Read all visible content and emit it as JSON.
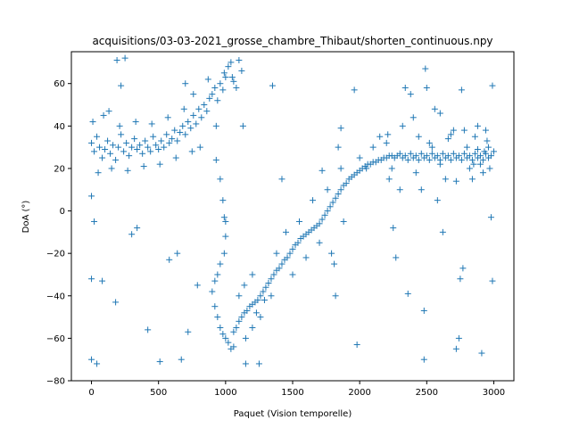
{
  "chart_data": {
    "type": "scatter",
    "title": "acquisitions/03-03-2021_grosse_chambre_Thibaut/shorten_continuous.npy",
    "xlabel": "Paquet (Vision temporelle)",
    "ylabel": "DoA (°)",
    "xlim": [
      -150,
      3150
    ],
    "ylim": [
      -80,
      75
    ],
    "xticks": [
      0,
      500,
      1000,
      1500,
      2000,
      2500,
      3000
    ],
    "yticks": [
      -80,
      -60,
      -40,
      -20,
      0,
      20,
      40,
      60
    ],
    "marker": "+",
    "color": "#1f77b4",
    "grid": false,
    "series": [
      {
        "name": "",
        "points": [
          [
            0,
            32
          ],
          [
            20,
            28
          ],
          [
            40,
            35
          ],
          [
            60,
            30
          ],
          [
            80,
            25
          ],
          [
            100,
            29
          ],
          [
            120,
            33
          ],
          [
            140,
            27
          ],
          [
            160,
            31
          ],
          [
            180,
            24
          ],
          [
            200,
            30
          ],
          [
            220,
            36
          ],
          [
            240,
            28
          ],
          [
            260,
            32
          ],
          [
            280,
            26
          ],
          [
            300,
            30
          ],
          [
            320,
            34
          ],
          [
            340,
            29
          ],
          [
            360,
            31
          ],
          [
            380,
            27
          ],
          [
            400,
            33
          ],
          [
            420,
            30
          ],
          [
            440,
            28
          ],
          [
            460,
            35
          ],
          [
            480,
            31
          ],
          [
            500,
            29
          ],
          [
            520,
            33
          ],
          [
            540,
            30
          ],
          [
            560,
            36
          ],
          [
            580,
            32
          ],
          [
            600,
            34
          ],
          [
            620,
            38
          ],
          [
            640,
            33
          ],
          [
            660,
            37
          ],
          [
            680,
            40
          ],
          [
            700,
            36
          ],
          [
            720,
            42
          ],
          [
            740,
            39
          ],
          [
            760,
            45
          ],
          [
            780,
            41
          ],
          [
            800,
            48
          ],
          [
            820,
            44
          ],
          [
            840,
            50
          ],
          [
            860,
            47
          ],
          [
            880,
            53
          ],
          [
            900,
            55
          ],
          [
            920,
            58
          ],
          [
            940,
            52
          ],
          [
            960,
            60
          ],
          [
            980,
            57
          ],
          [
            10,
            42
          ],
          [
            50,
            18
          ],
          [
            90,
            45
          ],
          [
            150,
            20
          ],
          [
            210,
            40
          ],
          [
            270,
            19
          ],
          [
            330,
            42
          ],
          [
            390,
            21
          ],
          [
            450,
            41
          ],
          [
            510,
            22
          ],
          [
            570,
            44
          ],
          [
            630,
            25
          ],
          [
            690,
            48
          ],
          [
            750,
            28
          ],
          [
            810,
            30
          ],
          [
            870,
            62
          ],
          [
            930,
            40
          ],
          [
            990,
            65
          ],
          [
            700,
            60
          ],
          [
            760,
            55
          ],
          [
            0,
            7
          ],
          [
            20,
            -5
          ],
          [
            0,
            -32
          ],
          [
            80,
            -33
          ],
          [
            180,
            -43
          ],
          [
            0,
            -70
          ],
          [
            40,
            -72
          ],
          [
            130,
            47
          ],
          [
            190,
            71
          ],
          [
            250,
            72
          ],
          [
            220,
            59
          ],
          [
            300,
            -11
          ],
          [
            340,
            -8
          ],
          [
            420,
            -56
          ],
          [
            510,
            -71
          ],
          [
            580,
            -23
          ],
          [
            640,
            -20
          ],
          [
            670,
            -70
          ],
          [
            720,
            -57
          ],
          [
            790,
            -35
          ],
          [
            1000,
            63
          ],
          [
            1020,
            68
          ],
          [
            1040,
            70
          ],
          [
            1060,
            61
          ],
          [
            1080,
            58
          ],
          [
            1100,
            71
          ],
          [
            1120,
            66
          ],
          [
            1130,
            40
          ],
          [
            1350,
            59
          ],
          [
            1050,
            63
          ],
          [
            930,
            24
          ],
          [
            960,
            15
          ],
          [
            980,
            5
          ],
          [
            990,
            -3
          ],
          [
            1000,
            -5
          ],
          [
            1000,
            -12
          ],
          [
            990,
            -20
          ],
          [
            960,
            -25
          ],
          [
            940,
            -30
          ],
          [
            920,
            -33
          ],
          [
            900,
            -38
          ],
          [
            920,
            -45
          ],
          [
            940,
            -50
          ],
          [
            960,
            -55
          ],
          [
            980,
            -58
          ],
          [
            1000,
            -60
          ],
          [
            1020,
            -62
          ],
          [
            1040,
            -65
          ],
          [
            1060,
            -57
          ],
          [
            1080,
            -55
          ],
          [
            1100,
            -52
          ],
          [
            1120,
            -50
          ],
          [
            1140,
            -48
          ],
          [
            1160,
            -47
          ],
          [
            1180,
            -45
          ],
          [
            1200,
            -44
          ],
          [
            1220,
            -43
          ],
          [
            1240,
            -42
          ],
          [
            1260,
            -40
          ],
          [
            1280,
            -38
          ],
          [
            1300,
            -36
          ],
          [
            1320,
            -34
          ],
          [
            1340,
            -32
          ],
          [
            1360,
            -30
          ],
          [
            1380,
            -28
          ],
          [
            1400,
            -27
          ],
          [
            1420,
            -25
          ],
          [
            1440,
            -23
          ],
          [
            1460,
            -22
          ],
          [
            1480,
            -20
          ],
          [
            1500,
            -18
          ],
          [
            1520,
            -16
          ],
          [
            1540,
            -15
          ],
          [
            1560,
            -13
          ],
          [
            1580,
            -12
          ],
          [
            1600,
            -11
          ],
          [
            1620,
            -10
          ],
          [
            1640,
            -9
          ],
          [
            1660,
            -8
          ],
          [
            1680,
            -7
          ],
          [
            1700,
            -6
          ],
          [
            1720,
            -4
          ],
          [
            1740,
            -2
          ],
          [
            1760,
            0
          ],
          [
            1780,
            2
          ],
          [
            1800,
            4
          ],
          [
            1820,
            6
          ],
          [
            1840,
            8
          ],
          [
            1860,
            10
          ],
          [
            1880,
            12
          ],
          [
            1900,
            13
          ],
          [
            1920,
            15
          ],
          [
            1940,
            16
          ],
          [
            1960,
            17
          ],
          [
            1980,
            18
          ],
          [
            2000,
            19
          ],
          [
            2020,
            20
          ],
          [
            2040,
            21
          ],
          [
            2060,
            22
          ],
          [
            2080,
            22
          ],
          [
            2100,
            23
          ],
          [
            2120,
            23
          ],
          [
            2140,
            24
          ],
          [
            2160,
            24
          ],
          [
            2180,
            25
          ],
          [
            2200,
            25
          ],
          [
            2220,
            26
          ],
          [
            2240,
            26
          ],
          [
            2260,
            25
          ],
          [
            2280,
            26
          ],
          [
            2300,
            27
          ],
          [
            2320,
            25
          ],
          [
            2340,
            26
          ],
          [
            2360,
            24
          ],
          [
            2380,
            27
          ],
          [
            2400,
            25
          ],
          [
            2420,
            26
          ],
          [
            2440,
            24
          ],
          [
            2460,
            27
          ],
          [
            2480,
            25
          ],
          [
            2500,
            26
          ],
          [
            2520,
            24
          ],
          [
            2540,
            27
          ],
          [
            2560,
            25
          ],
          [
            2580,
            26
          ],
          [
            2600,
            24
          ],
          [
            2620,
            27
          ],
          [
            2640,
            25
          ],
          [
            2660,
            26
          ],
          [
            2680,
            24
          ],
          [
            2700,
            27
          ],
          [
            2720,
            25
          ],
          [
            2740,
            26
          ],
          [
            2760,
            24
          ],
          [
            2780,
            27
          ],
          [
            2800,
            25
          ],
          [
            2820,
            26
          ],
          [
            2840,
            24
          ],
          [
            2860,
            27
          ],
          [
            2880,
            25
          ],
          [
            2900,
            26
          ],
          [
            2920,
            24
          ],
          [
            2940,
            27
          ],
          [
            2960,
            25
          ],
          [
            2980,
            26
          ],
          [
            3000,
            28
          ],
          [
            1060,
            -64
          ],
          [
            1100,
            -40
          ],
          [
            1150,
            -60
          ],
          [
            1200,
            -55
          ],
          [
            1230,
            -48
          ],
          [
            1260,
            -50
          ],
          [
            1150,
            -72
          ],
          [
            1250,
            -72
          ],
          [
            1140,
            -35
          ],
          [
            1200,
            -30
          ],
          [
            1290,
            -42
          ],
          [
            1340,
            -40
          ],
          [
            1380,
            -20
          ],
          [
            1420,
            15
          ],
          [
            1450,
            -10
          ],
          [
            1500,
            -30
          ],
          [
            1550,
            -5
          ],
          [
            1600,
            -22
          ],
          [
            1650,
            5
          ],
          [
            1700,
            -15
          ],
          [
            1720,
            19
          ],
          [
            1760,
            10
          ],
          [
            1790,
            -20
          ],
          [
            1810,
            -25
          ],
          [
            1820,
            -40
          ],
          [
            1840,
            30
          ],
          [
            1860,
            39
          ],
          [
            1860,
            20
          ],
          [
            1880,
            -5
          ],
          [
            1960,
            57
          ],
          [
            1980,
            -63
          ],
          [
            2000,
            25
          ],
          [
            2050,
            20
          ],
          [
            2100,
            30
          ],
          [
            2150,
            35
          ],
          [
            2200,
            32
          ],
          [
            2210,
            36
          ],
          [
            2220,
            15
          ],
          [
            2240,
            20
          ],
          [
            2250,
            -8
          ],
          [
            2270,
            -22
          ],
          [
            2300,
            10
          ],
          [
            2320,
            40
          ],
          [
            2340,
            58
          ],
          [
            2360,
            -39
          ],
          [
            2380,
            55
          ],
          [
            2400,
            44
          ],
          [
            2420,
            18
          ],
          [
            2440,
            35
          ],
          [
            2460,
            10
          ],
          [
            2480,
            -47
          ],
          [
            2490,
            67
          ],
          [
            2500,
            58
          ],
          [
            2520,
            32
          ],
          [
            2540,
            30
          ],
          [
            2560,
            48
          ],
          [
            2580,
            5
          ],
          [
            2600,
            22
          ],
          [
            2620,
            -10
          ],
          [
            2640,
            15
          ],
          [
            2660,
            34
          ],
          [
            2680,
            36
          ],
          [
            2700,
            38
          ],
          [
            2720,
            14
          ],
          [
            2740,
            -60
          ],
          [
            2750,
            -32
          ],
          [
            2760,
            57
          ],
          [
            2770,
            -27
          ],
          [
            2780,
            38
          ],
          [
            2800,
            30
          ],
          [
            2820,
            20
          ],
          [
            2840,
            15
          ],
          [
            2860,
            35
          ],
          [
            2880,
            40
          ],
          [
            2900,
            22
          ],
          [
            2910,
            -67
          ],
          [
            2920,
            18
          ],
          [
            2940,
            38
          ],
          [
            2960,
            30
          ],
          [
            2980,
            -3
          ],
          [
            2990,
            59
          ],
          [
            2990,
            -33
          ],
          [
            2480,
            -70
          ],
          [
            2720,
            -65
          ],
          [
            2600,
            46
          ],
          [
            2950,
            33
          ],
          [
            2970,
            20
          ],
          [
            2930,
            28
          ],
          [
            2880,
            29
          ],
          [
            2850,
            22
          ]
        ]
      }
    ]
  }
}
